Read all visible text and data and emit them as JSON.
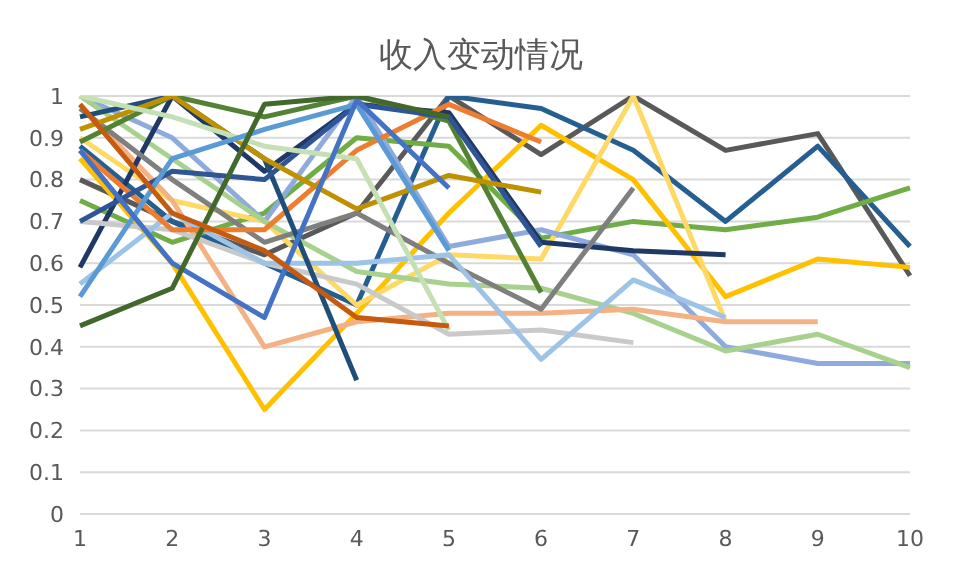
{
  "chart_data": {
    "type": "line",
    "title": "收入变动情况",
    "categories": [
      "1",
      "2",
      "3",
      "4",
      "5",
      "6",
      "7",
      "8",
      "9",
      "10"
    ],
    "ylim": [
      0,
      1
    ],
    "yticks": [
      0,
      0.1,
      0.2,
      0.3,
      0.4,
      0.5,
      0.6,
      0.7,
      0.8,
      0.9,
      1
    ],
    "grid": "y",
    "legend": false,
    "marker": "none",
    "line_style": "solid",
    "series": [
      {
        "color": "#595959",
        "values": [
          0.8,
          0.7,
          0.62,
          0.72,
          1.0,
          0.86,
          1.0,
          0.87,
          0.91,
          0.57
        ]
      },
      {
        "color": "#255e91",
        "values": [
          0.88,
          0.7,
          0.6,
          0.5,
          1.0,
          0.97,
          0.87,
          0.7,
          0.88,
          0.64
        ]
      },
      {
        "color": "#70ad47",
        "values": [
          0.75,
          0.65,
          0.72,
          0.9,
          0.88,
          0.66,
          0.7,
          0.68,
          0.71,
          0.78
        ]
      },
      {
        "color": "#ffc000",
        "values": [
          0.85,
          0.6,
          0.25,
          0.48,
          0.72,
          0.93,
          0.8,
          0.52,
          0.61,
          0.59
        ]
      },
      {
        "color": "#ffd966",
        "values": [
          0.9,
          0.75,
          0.7,
          0.5,
          0.62,
          0.61,
          1.0,
          0.46,
          null,
          null
        ]
      },
      {
        "color": "#8faadc",
        "values": [
          1.0,
          0.9,
          0.7,
          1.0,
          0.64,
          0.68,
          0.62,
          0.4,
          0.36,
          0.36
        ]
      },
      {
        "color": "#a9d18e",
        "values": [
          1.0,
          0.85,
          0.7,
          0.58,
          0.55,
          0.54,
          0.48,
          0.39,
          0.43,
          0.35
        ]
      },
      {
        "color": "#f4b183",
        "values": [
          0.98,
          0.75,
          0.4,
          0.46,
          0.48,
          0.48,
          0.49,
          0.46,
          0.46,
          null
        ]
      },
      {
        "color": "#203864",
        "values": [
          0.59,
          1.0,
          0.82,
          0.98,
          0.96,
          0.65,
          0.63,
          0.62,
          null,
          null
        ]
      },
      {
        "color": "#c9c9c9",
        "values": [
          0.7,
          0.68,
          0.6,
          0.55,
          0.43,
          0.44,
          0.41,
          null,
          null,
          null
        ]
      },
      {
        "color": "#7f7f7f",
        "values": [
          0.97,
          0.8,
          0.65,
          0.72,
          0.6,
          0.49,
          0.78,
          null,
          null,
          null
        ]
      },
      {
        "color": "#9dc3e6",
        "values": [
          0.55,
          0.72,
          0.6,
          0.6,
          0.62,
          0.37,
          0.56,
          0.47,
          null,
          null
        ]
      },
      {
        "color": "#ed7d31",
        "values": [
          0.87,
          0.68,
          0.68,
          0.87,
          0.98,
          0.89,
          null,
          null,
          null,
          null
        ]
      },
      {
        "color": "#1f4e79",
        "values": [
          0.95,
          1.0,
          0.85,
          0.32,
          null,
          null,
          null,
          null,
          null,
          null
        ]
      },
      {
        "color": "#548235",
        "values": [
          0.89,
          1.0,
          0.95,
          1.0,
          0.94,
          0.53,
          null,
          null,
          null,
          null
        ]
      },
      {
        "color": "#2f5597",
        "values": [
          0.7,
          0.82,
          0.8,
          0.98,
          0.95,
          0.64,
          null,
          null,
          null,
          null
        ]
      },
      {
        "color": "#bf9000",
        "values": [
          0.92,
          1.0,
          0.85,
          0.73,
          0.81,
          0.77,
          null,
          null,
          null,
          null
        ]
      },
      {
        "color": "#c5e0b4",
        "values": [
          1.0,
          0.95,
          0.88,
          0.85,
          0.44,
          null,
          null,
          null,
          null,
          null
        ]
      },
      {
        "color": "#5b9bd5",
        "values": [
          0.52,
          0.85,
          0.92,
          0.98,
          0.63,
          null,
          null,
          null,
          null,
          null
        ]
      },
      {
        "color": "#4472c4",
        "values": [
          0.87,
          0.6,
          0.47,
          0.99,
          0.78,
          null,
          null,
          null,
          null,
          null
        ]
      },
      {
        "color": "#43682b",
        "values": [
          0.45,
          0.54,
          0.98,
          1.0,
          0.95,
          null,
          null,
          null,
          null,
          null
        ]
      },
      {
        "color": "#c55a11",
        "values": [
          0.98,
          0.72,
          0.63,
          0.47,
          0.45,
          null,
          null,
          null,
          null,
          null
        ]
      }
    ]
  }
}
